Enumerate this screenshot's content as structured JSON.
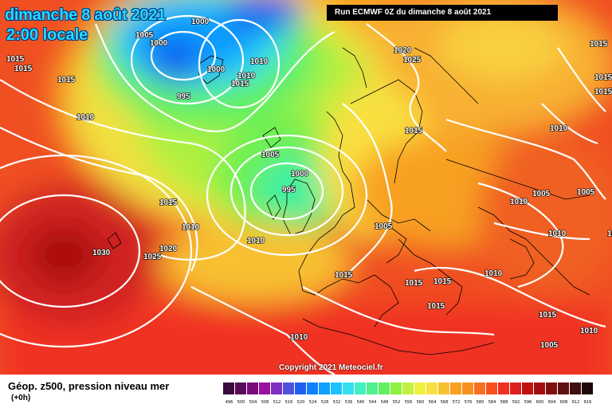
{
  "header": {
    "date_line": "dimanche 8 août 2021",
    "time_line": "2:00 locale",
    "run_banner": "Run ECMWF 0Z du dimanche 8 août 2021"
  },
  "footer": {
    "field_label": "Géop. z500, pression niveau mer",
    "offset_label": "(+0h)",
    "copyright": "Copyright 2021 Meteociel.fr"
  },
  "legend_scale": {
    "values": [
      "496",
      "500",
      "504",
      "508",
      "512",
      "516",
      "520",
      "524",
      "528",
      "532",
      "536",
      "540",
      "544",
      "548",
      "552",
      "556",
      "560",
      "564",
      "568",
      "572",
      "576",
      "580",
      "584",
      "588",
      "592",
      "596",
      "600",
      "604",
      "608",
      "612",
      "616"
    ],
    "colors": [
      "#3a0a3a",
      "#5a0a5a",
      "#7a0a7a",
      "#9a10a0",
      "#8030c0",
      "#5050e0",
      "#2060f0",
      "#1080ff",
      "#10a0ff",
      "#20c0ff",
      "#30e0f0",
      "#40f0c0",
      "#50f090",
      "#60f060",
      "#90f040",
      "#c0f040",
      "#f0f040",
      "#f8e040",
      "#f8c030",
      "#f8a020",
      "#f89020",
      "#f87020",
      "#f85020",
      "#f03020",
      "#e02020",
      "#c01010",
      "#a01010",
      "#801010",
      "#601010",
      "#401010",
      "#200808"
    ]
  },
  "pressure_labels": [
    "1000",
    "1005",
    "1000",
    "1015",
    "1015",
    "995",
    "1000",
    "1010",
    "1010",
    "1015",
    "1015",
    "1010",
    "1015",
    "1020",
    "1025",
    "1015",
    "1015",
    "1015",
    "1005",
    "1000",
    "995",
    "1015",
    "1010",
    "1010",
    "1005",
    "1005",
    "1010",
    "1005",
    "1010",
    "1030",
    "1025",
    "1020",
    "1015",
    "1015",
    "1015",
    "1015",
    "1010",
    "1015",
    "1010",
    "1010",
    "1005",
    "1010",
    "1015"
  ],
  "colors": {
    "contour": "#ffffff",
    "coast": "#000000",
    "title_text": "#28d8ff",
    "banner_bg": "#000000"
  }
}
